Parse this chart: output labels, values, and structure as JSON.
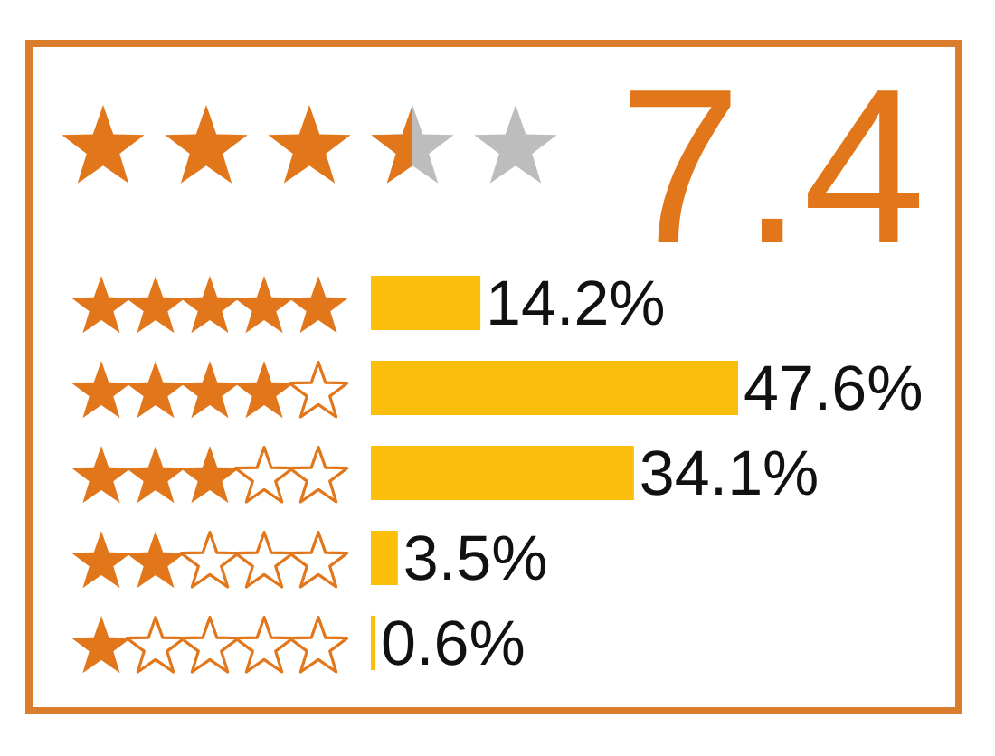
{
  "chart_data": {
    "type": "bar",
    "orientation": "horizontal",
    "title": "7.4",
    "categories": [
      null,
      null,
      null,
      null,
      null
    ],
    "values": [
      14.2,
      47.6,
      34.1,
      3.5,
      0.6
    ],
    "value_labels": [
      "14.2%",
      "47.6%",
      "34.1%",
      "3.5%",
      "0.6%"
    ],
    "color": "#fbbe0b"
  }
}
